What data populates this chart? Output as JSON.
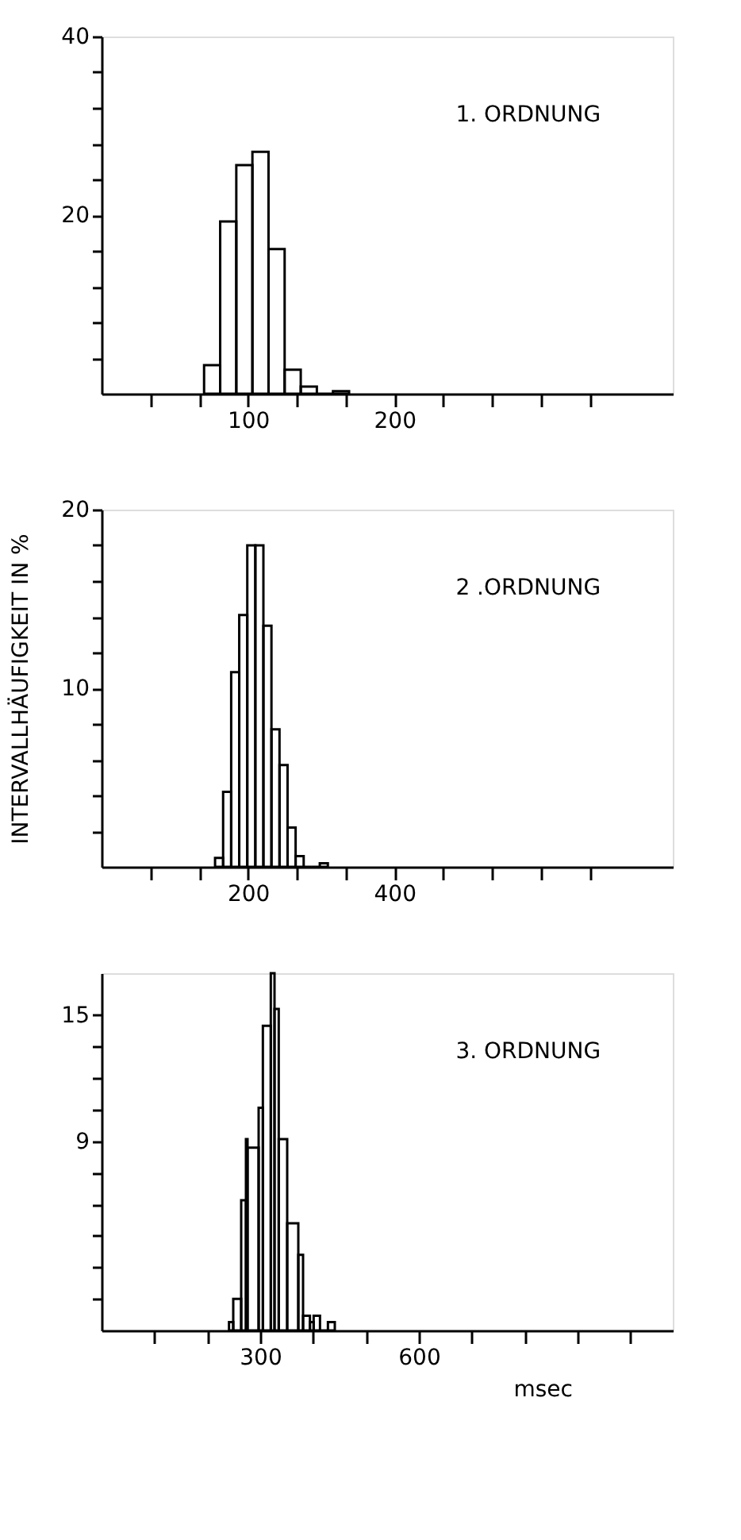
{
  "chart_data": [
    {
      "type": "histogram",
      "annotations": [
        "1. ORDNUNG"
      ],
      "bins": [
        70,
        81,
        92,
        103,
        114,
        125,
        136,
        147,
        158,
        169
      ],
      "values": [
        3.2,
        19.3,
        25.6,
        27.1,
        16.2,
        2.7,
        0.8,
        0,
        0.3
      ],
      "color": "#000000",
      "xlim": [
        0,
        390
      ],
      "ylim": [
        0,
        40
      ],
      "xticks": [
        {
          "value": 33.3,
          "label": null
        },
        {
          "value": 66.7,
          "label": null
        },
        100,
        {
          "value": 133.3,
          "label": null
        },
        {
          "value": 166.7,
          "label": null
        },
        200,
        {
          "value": 233.3,
          "label": null
        },
        {
          "value": 266.7,
          "label": null
        },
        {
          "value": 300,
          "label": null
        },
        {
          "value": 333.3,
          "label": null
        }
      ],
      "yticks": [
        {
          "value": 4,
          "label": null
        },
        {
          "value": 8,
          "label": null
        },
        {
          "value": 12,
          "label": null
        },
        {
          "value": 16,
          "label": null
        },
        20,
        {
          "value": 24,
          "label": null
        },
        {
          "value": 28,
          "label": null
        },
        {
          "value": 32,
          "label": null
        },
        {
          "value": 36,
          "label": null
        },
        40
      ]
    },
    {
      "type": "histogram",
      "ylabel": "INTERVALLHÄUFIGKEIT  IN %",
      "annotations": [
        "2 .ORDNUNG"
      ],
      "bins": [
        155,
        166,
        177,
        188,
        199,
        210,
        221,
        232,
        243,
        254,
        265,
        276,
        287,
        298,
        309
      ],
      "values": [
        0.5,
        4.2,
        10.9,
        14.1,
        18,
        18,
        13.5,
        7.7,
        5.7,
        2.2,
        0.6,
        0,
        0,
        0.2
      ],
      "color": "#000000",
      "xlim": [
        0,
        780
      ],
      "ylim": [
        0,
        20
      ],
      "xticks": [
        {
          "value": 66.7,
          "label": null
        },
        {
          "value": 133.3,
          "label": null
        },
        200,
        {
          "value": 266.7,
          "label": null
        },
        {
          "value": 333.3,
          "label": null
        },
        400,
        {
          "value": 466.7,
          "label": null
        },
        {
          "value": 533.3,
          "label": null
        },
        {
          "value": 600,
          "label": null
        },
        {
          "value": 666.7,
          "label": null
        }
      ],
      "yticks": [
        {
          "value": 2,
          "label": null
        },
        {
          "value": 4,
          "label": null
        },
        {
          "value": 6,
          "label": null
        },
        {
          "value": 8,
          "label": null
        },
        10,
        {
          "value": 12,
          "label": null
        },
        {
          "value": 14,
          "label": null
        },
        {
          "value": 16,
          "label": null
        },
        {
          "value": 18,
          "label": null
        },
        20
      ]
    },
    {
      "type": "histogram",
      "xlabel": "msec",
      "annotations": [
        "3. ORDNUNG"
      ],
      "bins": [
        241,
        249,
        264,
        273,
        276,
        297,
        305,
        320,
        327,
        335,
        351,
        372,
        381,
        394,
        401,
        413,
        428,
        441
      ],
      "values": [
        0.4,
        1.5,
        6.2,
        9.1,
        8.7,
        10.6,
        14.5,
        17,
        15.3,
        9.1,
        5.1,
        3.6,
        0.7,
        0.4,
        0.7,
        0,
        0.4
      ],
      "color": "#000000",
      "xlim": [
        0,
        1080
      ],
      "ylim": [
        0,
        17
      ],
      "xticks": [
        {
          "value": 100,
          "label": null
        },
        {
          "value": 200,
          "label": null
        },
        300,
        {
          "value": 400,
          "label": null
        },
        {
          "value": 500,
          "label": null
        },
        600,
        {
          "value": 700,
          "label": null
        },
        {
          "value": 800,
          "label": null
        },
        {
          "value": 900,
          "label": null
        },
        {
          "value": 1000,
          "label": null
        }
      ],
      "yticks": [
        {
          "value": 1.5,
          "label": null
        },
        {
          "value": 3,
          "label": null
        },
        {
          "value": 4.5,
          "label": null
        },
        {
          "value": 6,
          "label": null
        },
        {
          "value": 7.5,
          "label": null
        },
        9,
        {
          "value": 10.5,
          "label": null
        },
        {
          "value": 12,
          "label": null
        },
        {
          "value": 13.5,
          "label": null
        },
        15
      ]
    }
  ]
}
